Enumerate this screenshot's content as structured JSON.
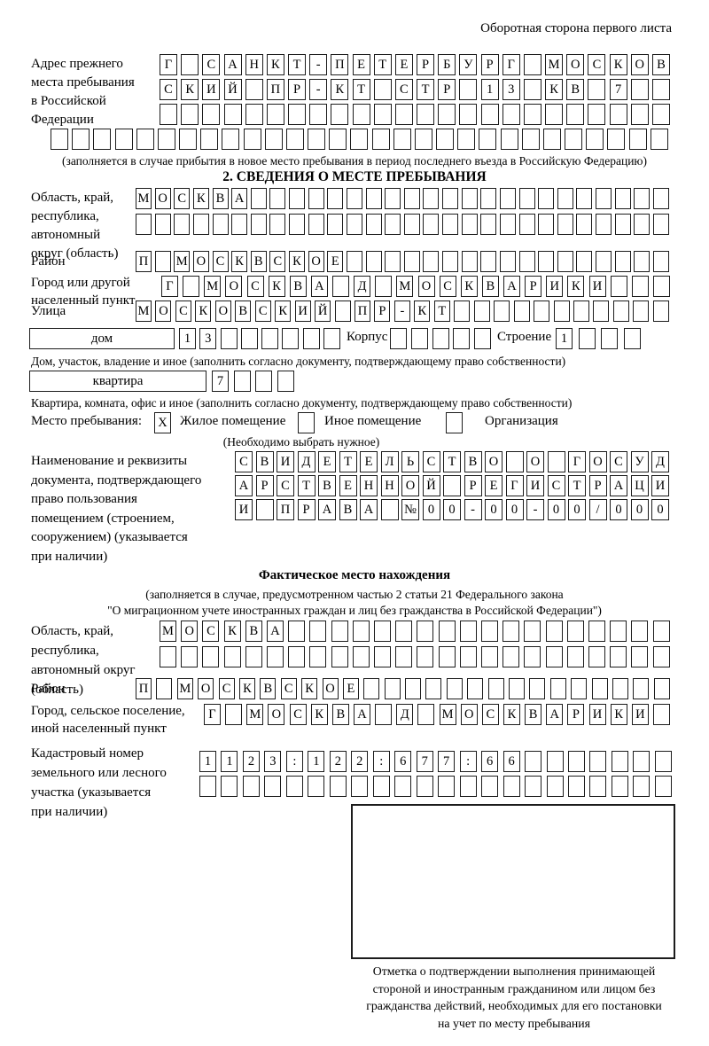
{
  "header": {
    "corner_note": "Оборотная сторона первого листа"
  },
  "prev_address": {
    "label": "Адрес прежнего\nместа пребывания\nв Российской\nФедерации",
    "row1": "Г САНКТ-ПЕТЕРБУРГ МОСКОВ",
    "row2": "СКИЙ ПР-КТ СТР 13 КВ 7  ",
    "row3": "                        ",
    "row4": "                             ",
    "note": "(заполняется в случае прибытия в новое место пребывания в период последнего въезда в Российскую Федерацию)"
  },
  "section2": {
    "title": "2. СВЕДЕНИЯ О МЕСТЕ ПРЕБЫВАНИЯ",
    "region_label": "Область, край,\nреспублика,\nавтономный\nокруг (область)",
    "region_row1": "МОСКВА                      ",
    "region_row2": "                            ",
    "district_label": "Район",
    "district_row": "П МОСКВСКОЕ                 ",
    "city_label": "Город или другой\nнаселенный пункт",
    "city_row": "Г МОСКВА Д МОСКВАРИКИ   ",
    "street_label": "Улица",
    "street_row": "МОСКОВСКИЙ ПР-КТ           ",
    "house_box_label": "дом",
    "house_cells": "13      ",
    "korpus_label": "Корпус",
    "korpus_cells": "     ",
    "stroenie_label": "Строение",
    "stroenie_cells": "1   ",
    "house_note": "Дом, участок, владение и иное (заполнить согласно документу, подтверждающему право собственности)",
    "apartment_box_label": "квартира",
    "apartment_cells": "7   ",
    "apartment_note": "Квартира, комната, офис и иное (заполнить согласно документу, подтверждающему право собственности)",
    "stay": {
      "label": "Место пребывания:",
      "option1_mark": "X",
      "option1": "Жилое помещение",
      "option2_mark": " ",
      "option2": "Иное помещение",
      "option3_mark": " ",
      "option3": "Организация",
      "note": "(Необходимо выбрать нужное)"
    },
    "document": {
      "label": "Наименование и реквизиты\nдокумента, подтверждающего\nправо пользования\nпомещением (строением,\nсооружением) (указывается\nпри наличии)",
      "row1": "СВИДЕТЕЛЬСТВО О ГОСУД",
      "row2": "АРСТВЕННОЙ РЕГИСТРАЦИ",
      "row3": "И ПРАВА №00-00-00/000"
    }
  },
  "actual_location": {
    "title": "Фактическое место нахождения",
    "note_line1": "(заполняется в случае, предусмотренном частью 2 статьи 21 Федерального закона",
    "note_line2": "\"О миграционном учете иностранных граждан и лиц без гражданства в Российской Федерации\")",
    "region_label": "Область, край,\nреспублика,\nавтономный округ\n(область)",
    "region_row1": "МОСКВА                  ",
    "region_row2": "                        ",
    "district_label": "Район",
    "district_row": "П МОСКВСКОЕ               ",
    "city_label": "Город, сельское поселение,\nиной населенный пункт",
    "city_row": "Г МОСКВА Д МОСКВАРИКИ ",
    "cadastral_label": "Кадастровый номер\nземельного или лесного\nучастка (указывается\nпри наличии)",
    "cadastral_row1": "1123:122:677:66       ",
    "cadastral_row2": "                      ",
    "stamp_note": "Отметка о подтверждении выполнения принимающей\nстороной и иностранным гражданином или лицом без\nгражданства действий, необходимых для его постановки\nна учет по месту пребывания"
  }
}
